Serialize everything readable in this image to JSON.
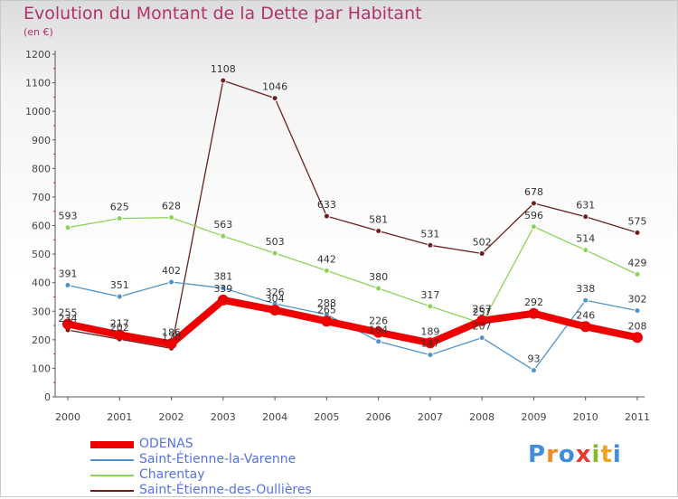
{
  "title": "Evolution du Montant de la Dette par Habitant",
  "unit_label": "(en €)",
  "logo_text": "Proxiti",
  "chart_data": {
    "type": "line",
    "title": "Evolution du Montant de la Dette par Habitant",
    "ylabel": "(en €)",
    "xlabel": "",
    "categories": [
      "2000",
      "2001",
      "2002",
      "2003",
      "2004",
      "2005",
      "2006",
      "2007",
      "2008",
      "2009",
      "2010",
      "2011"
    ],
    "ylim": [
      0,
      1200
    ],
    "yticks": [
      0,
      100,
      200,
      300,
      400,
      500,
      600,
      700,
      800,
      900,
      1000,
      1100,
      1200
    ],
    "grid": false,
    "legend_position": "bottom-left",
    "series": [
      {
        "name": "ODENAS",
        "color": "#ee0000",
        "values": [
          255,
          217,
          186,
          339,
          304,
          265,
          226,
          189,
          267,
          292,
          246,
          208
        ]
      },
      {
        "name": "Saint-Étienne-la-Varenne",
        "color": "#4f93cc",
        "values": [
          391,
          351,
          402,
          381,
          326,
          288,
          194,
          147,
          207,
          93,
          338,
          302
        ]
      },
      {
        "name": "Charentay",
        "color": "#8dd35a",
        "values": [
          593,
          625,
          628,
          563,
          503,
          442,
          380,
          317,
          257,
          596,
          514,
          429
        ]
      },
      {
        "name": "Saint-Étienne-des-Oullières",
        "color": "#6b1f1f",
        "values": [
          234,
          202,
          170,
          1108,
          1046,
          633,
          581,
          531,
          502,
          678,
          631,
          575
        ]
      }
    ]
  }
}
